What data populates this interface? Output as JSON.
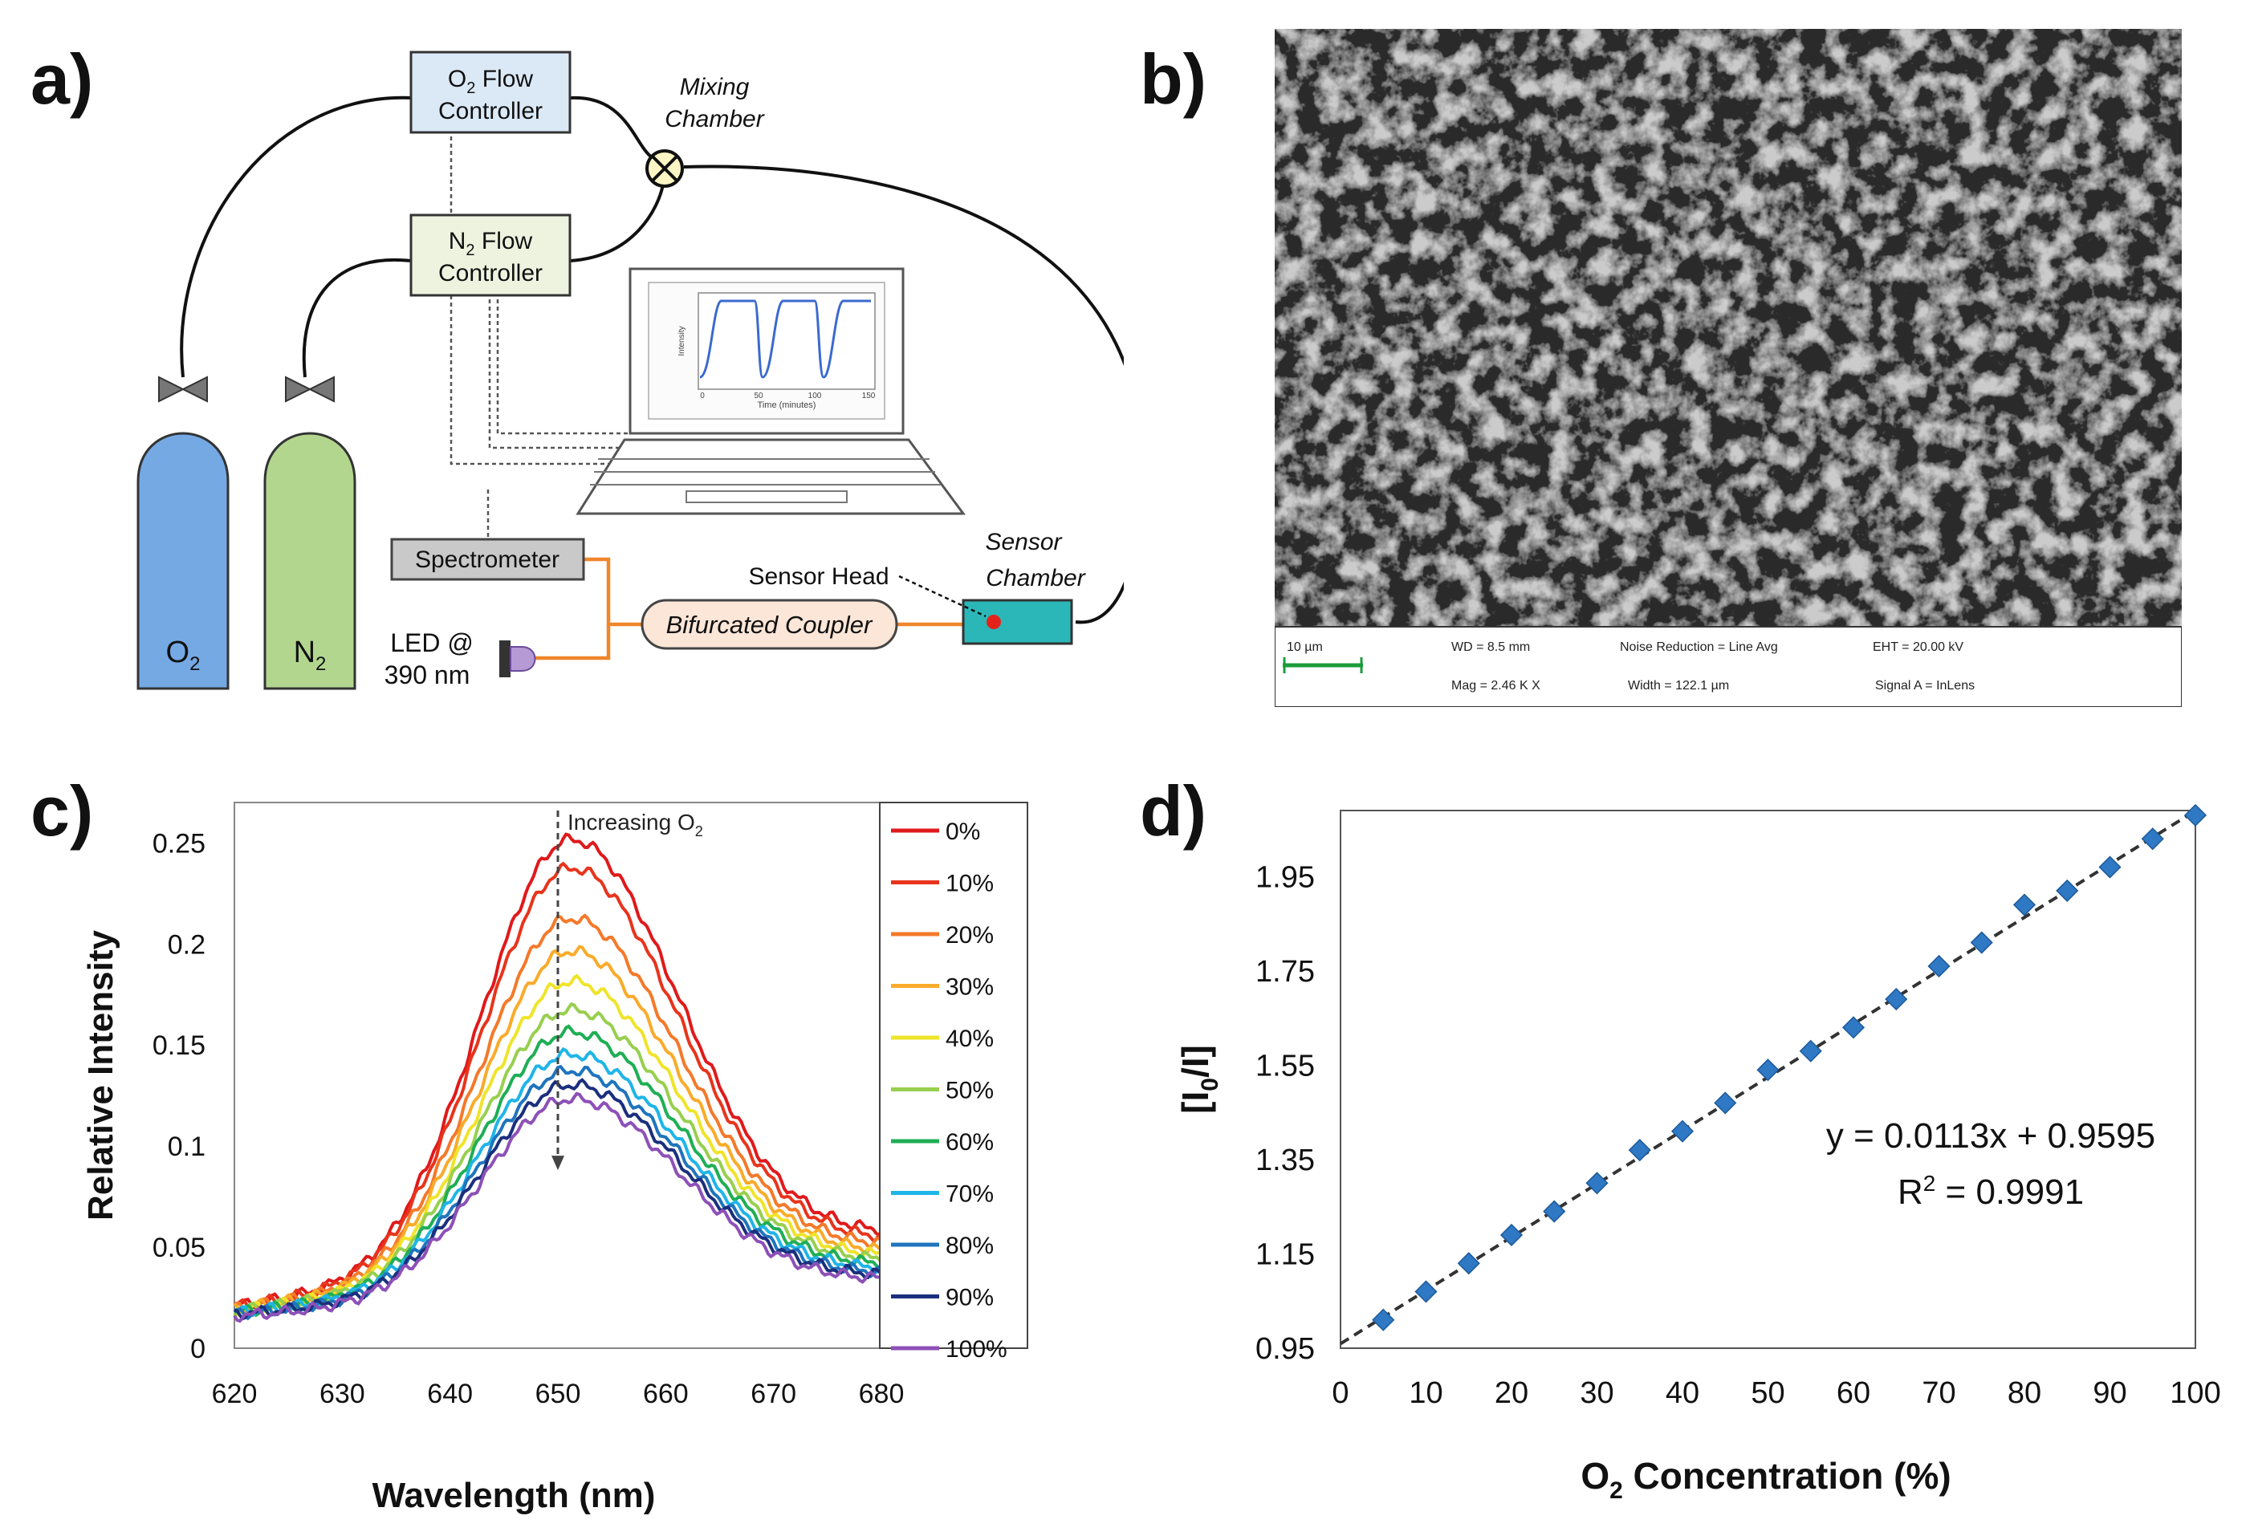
{
  "panel_labels": {
    "a": "a)",
    "b": "b)",
    "c": "c)",
    "d": "d)"
  },
  "diagram": {
    "o2_controller": [
      "O",
      "2",
      " Flow",
      "Controller"
    ],
    "n2_controller": [
      "N",
      "2",
      " Flow",
      "Controller"
    ],
    "mixing_chamber": [
      "Mixing",
      "Chamber"
    ],
    "o2_cylinder": [
      "O",
      "2"
    ],
    "n2_cylinder": [
      "N",
      "2"
    ],
    "spectrometer": "Spectrometer",
    "led": [
      "LED @",
      "390 nm"
    ],
    "coupler": "Bifurcated Coupler",
    "sensor_head": "Sensor Head",
    "sensor_chamber": [
      "Sensor",
      "Chamber"
    ],
    "laptop_plot": {
      "ylabel": "Intensity",
      "xlabel": "Time (minutes)",
      "xticks": [
        "0",
        "50",
        "100",
        "150"
      ]
    },
    "colors": {
      "o2_box": "#dbe9f7",
      "n2_box": "#eef3df",
      "o2_cyl": "#74a9e4",
      "n2_cyl": "#b3d68f",
      "fiber": "#f0862a",
      "sensor": "#2bb7b7",
      "coupler": "#fbe6d8"
    }
  },
  "sem": {
    "scale_label": "10 µm",
    "wd": "WD =  8.5 mm",
    "mag": "Mag =  2.46 K X",
    "noise": "Noise Reduction = Line Avg",
    "width": "Width = 122.1 µm",
    "eht": "EHT = 20.00 kV",
    "signal": "Signal A = InLens"
  },
  "chart_data": [
    {
      "type": "line",
      "panel": "c",
      "xlabel": "Wavelength (nm)",
      "ylabel": "Relative Intensity",
      "annotation": [
        "Increasing O",
        "2"
      ],
      "xlim": [
        620,
        680
      ],
      "ylim": [
        0,
        0.27
      ],
      "xticks": [
        620,
        630,
        640,
        650,
        660,
        670,
        680
      ],
      "yticks": [
        0,
        0.05,
        0.1,
        0.15,
        0.2,
        0.25
      ],
      "ytick_labels": [
        "0",
        "0.05",
        "0.1",
        "0.15",
        "0.2",
        "0.25"
      ],
      "peak_nm": 651,
      "series": [
        {
          "name": "0%",
          "color": "#e0191b",
          "peak": 0.251,
          "base_left": 0.021,
          "base_right": 0.055
        },
        {
          "name": "10%",
          "color": "#e8341c",
          "peak": 0.237,
          "base_left": 0.021,
          "base_right": 0.052
        },
        {
          "name": "20%",
          "color": "#f4792a",
          "peak": 0.212,
          "base_left": 0.02,
          "base_right": 0.049
        },
        {
          "name": "30%",
          "color": "#f9ab2a",
          "peak": 0.196,
          "base_left": 0.02,
          "base_right": 0.046
        },
        {
          "name": "40%",
          "color": "#efe42a",
          "peak": 0.181,
          "base_left": 0.019,
          "base_right": 0.044
        },
        {
          "name": "50%",
          "color": "#98cf4f",
          "peak": 0.167,
          "base_left": 0.019,
          "base_right": 0.042
        },
        {
          "name": "60%",
          "color": "#1fae55",
          "peak": 0.156,
          "base_left": 0.018,
          "base_right": 0.04
        },
        {
          "name": "70%",
          "color": "#1fb5e8",
          "peak": 0.145,
          "base_left": 0.018,
          "base_right": 0.038
        },
        {
          "name": "80%",
          "color": "#1f74bd",
          "peak": 0.137,
          "base_left": 0.017,
          "base_right": 0.036
        },
        {
          "name": "90%",
          "color": "#1b2f7c",
          "peak": 0.13,
          "base_left": 0.017,
          "base_right": 0.035
        },
        {
          "name": "100%",
          "color": "#8d50b7",
          "peak": 0.123,
          "base_left": 0.016,
          "base_right": 0.033
        }
      ]
    },
    {
      "type": "scatter",
      "panel": "d",
      "xlabel": [
        "O",
        "2",
        " Concentration (%)"
      ],
      "ylabel": [
        "[I",
        "0",
        "/I]"
      ],
      "xlim": [
        0,
        100
      ],
      "ylim": [
        0.95,
        2.09
      ],
      "xticks": [
        0,
        10,
        20,
        30,
        40,
        50,
        60,
        70,
        80,
        90,
        100
      ],
      "yticks": [
        0.95,
        1.15,
        1.35,
        1.55,
        1.75,
        1.95
      ],
      "ytick_labels": [
        "0.95",
        "1.15",
        "1.35",
        "1.55",
        "1.75",
        "1.95"
      ],
      "x": [
        5,
        10,
        15,
        20,
        25,
        30,
        35,
        40,
        45,
        50,
        55,
        60,
        65,
        70,
        75,
        80,
        85,
        90,
        95,
        100
      ],
      "y": [
        1.01,
        1.07,
        1.13,
        1.19,
        1.24,
        1.3,
        1.37,
        1.41,
        1.47,
        1.54,
        1.58,
        1.63,
        1.69,
        1.76,
        1.81,
        1.89,
        1.92,
        1.97,
        2.03,
        2.08
      ],
      "fit": {
        "slope": 0.0113,
        "intercept": 0.9595
      },
      "equation": "y = 0.0113x + 0.9595",
      "r2_label": "R",
      "r2_sup": "2",
      "r2_value": " = 0.9991",
      "marker_color": "#2f78c4"
    }
  ]
}
